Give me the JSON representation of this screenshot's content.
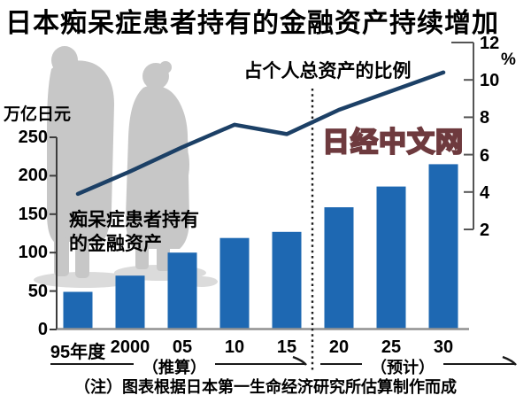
{
  "title": "日本痴呆症患者持有的金融资产持续增加",
  "watermark": "日经中文网",
  "note": "（注）图表根据日本第一生命经济研究所估算制作而成",
  "labels": {
    "bar_series_line1": "痴呆症患者持有",
    "bar_series_line2": "的金融资产",
    "line_series": "占个人总资产的比例",
    "left_unit": "万亿日元",
    "right_unit": "%",
    "estimated": "（推算）",
    "forecast": "（预计）"
  },
  "colors": {
    "bar": "#1e68b2",
    "line": "#1c4066",
    "silhouette": "#c7c7c7",
    "shadow": "#dbdbdb",
    "watermark_outline": "#6e3a3e",
    "axis": "#3c3c3c",
    "baseline": "#919191"
  },
  "chart_data": {
    "type": "bar",
    "title": "日本痴呆症患者持有的金融资产持续增加",
    "categories": [
      "95年度",
      "2000",
      "05",
      "10",
      "15",
      "20",
      "25",
      "30"
    ],
    "series": [
      {
        "name": "痴呆症患者持有的金融资产",
        "type": "bar",
        "axis": "left",
        "unit": "万亿日元",
        "values": [
          49,
          70,
          100,
          119,
          127,
          159,
          186,
          215
        ]
      },
      {
        "name": "占个人总资产的比例",
        "type": "line",
        "axis": "right",
        "unit": "%",
        "values": [
          3.9,
          5.1,
          6.4,
          7.6,
          7.1,
          8.4,
          9.4,
          10.4
        ]
      }
    ],
    "left_axis": {
      "unit": "万亿日元",
      "ticks": [
        250,
        200,
        150,
        100,
        50,
        0
      ],
      "range": [
        0,
        250
      ]
    },
    "right_axis": {
      "unit": "%",
      "ticks": [
        12,
        10,
        8,
        6,
        4,
        2
      ],
      "range": [
        2,
        12
      ]
    },
    "segments": [
      {
        "label": "（推算）",
        "span": [
          "95年度",
          "15"
        ]
      },
      {
        "label": "（预计）",
        "span": [
          "20",
          "30"
        ]
      }
    ],
    "divider_between": [
      "15",
      "20"
    ],
    "grid": false,
    "legend_position": "inline-annotations"
  }
}
